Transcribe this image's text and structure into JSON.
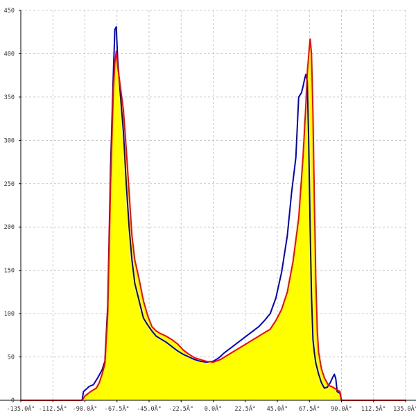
{
  "chart_data": {
    "type": "area",
    "title": "",
    "xlabel": "",
    "ylabel": "",
    "xlim": [
      -135,
      135
    ],
    "ylim": [
      0,
      450
    ],
    "grid": true,
    "x_ticks": [
      {
        "value": -135,
        "label": "-135.0Â°"
      },
      {
        "value": -112.5,
        "label": "-112.5Â°"
      },
      {
        "value": -90,
        "label": "-90.0Â°"
      },
      {
        "value": -67.5,
        "label": "-67.5Â°"
      },
      {
        "value": -45,
        "label": "-45.0Â°"
      },
      {
        "value": -22.5,
        "label": "-22.5Â°"
      },
      {
        "value": 0,
        "label": "0.0Â°"
      },
      {
        "value": 22.5,
        "label": "22.5Â°"
      },
      {
        "value": 45,
        "label": "45.0Â°"
      },
      {
        "value": 67.5,
        "label": "67.5Â°"
      },
      {
        "value": 90,
        "label": "90.0Â°"
      },
      {
        "value": 112.5,
        "label": "112.5Â°"
      },
      {
        "value": 135,
        "label": "135.0Â°"
      }
    ],
    "y_ticks": [
      {
        "value": 0,
        "label": "0"
      },
      {
        "value": 50,
        "label": "50"
      },
      {
        "value": 100,
        "label": "100"
      },
      {
        "value": 150,
        "label": "150"
      },
      {
        "value": 200,
        "label": "200"
      },
      {
        "value": 250,
        "label": "250"
      },
      {
        "value": 300,
        "label": "300"
      },
      {
        "value": 350,
        "label": "350"
      },
      {
        "value": 400,
        "label": "400"
      },
      {
        "value": 450,
        "label": "450"
      }
    ],
    "series": [
      {
        "color": "#ff0000",
        "fill": "#ffff00",
        "points": [
          [
            -135,
            0
          ],
          [
            -92,
            0
          ],
          [
            -90,
            5
          ],
          [
            -86,
            10
          ],
          [
            -82,
            14
          ],
          [
            -80,
            20
          ],
          [
            -78,
            30
          ],
          [
            -76,
            42
          ],
          [
            -74,
            100
          ],
          [
            -72,
            250
          ],
          [
            -70,
            360
          ],
          [
            -69,
            390
          ],
          [
            -68,
            403
          ],
          [
            -67,
            385
          ],
          [
            -65,
            360
          ],
          [
            -63,
            335
          ],
          [
            -61,
            290
          ],
          [
            -59,
            240
          ],
          [
            -57,
            190
          ],
          [
            -55,
            162
          ],
          [
            -52,
            140
          ],
          [
            -49,
            115
          ],
          [
            -46,
            98
          ],
          [
            -43,
            85
          ],
          [
            -40,
            80
          ],
          [
            -37,
            77
          ],
          [
            -33,
            74
          ],
          [
            -29,
            70
          ],
          [
            -25,
            65
          ],
          [
            -21,
            58
          ],
          [
            -17,
            53
          ],
          [
            -13,
            49
          ],
          [
            -9,
            47
          ],
          [
            -5,
            45
          ],
          [
            0,
            44
          ],
          [
            5,
            47
          ],
          [
            10,
            52
          ],
          [
            15,
            57
          ],
          [
            20,
            62
          ],
          [
            25,
            67
          ],
          [
            30,
            72
          ],
          [
            35,
            77
          ],
          [
            40,
            82
          ],
          [
            44,
            92
          ],
          [
            48,
            105
          ],
          [
            52,
            125
          ],
          [
            56,
            160
          ],
          [
            60,
            210
          ],
          [
            63,
            280
          ],
          [
            65,
            340
          ],
          [
            66,
            378
          ],
          [
            67,
            398
          ],
          [
            68,
            417
          ],
          [
            69,
            400
          ],
          [
            70,
            330
          ],
          [
            71,
            230
          ],
          [
            72,
            140
          ],
          [
            73,
            80
          ],
          [
            74,
            55
          ],
          [
            76,
            36
          ],
          [
            78,
            26
          ],
          [
            81,
            17
          ],
          [
            83,
            16
          ],
          [
            85,
            14
          ],
          [
            87,
            12
          ],
          [
            89,
            10
          ],
          [
            90,
            0
          ],
          [
            135,
            0
          ]
        ]
      },
      {
        "color": "#0000cc",
        "points": [
          [
            -92,
            0
          ],
          [
            -91,
            10
          ],
          [
            -89,
            13
          ],
          [
            -87,
            16
          ],
          [
            -84,
            18
          ],
          [
            -81,
            26
          ],
          [
            -78,
            35
          ],
          [
            -76,
            45
          ],
          [
            -74,
            110
          ],
          [
            -72,
            270
          ],
          [
            -70,
            380
          ],
          [
            -69,
            428
          ],
          [
            -68,
            431
          ],
          [
            -67,
            392
          ],
          [
            -65,
            350
          ],
          [
            -63,
            310
          ],
          [
            -61,
            250
          ],
          [
            -59,
            200
          ],
          [
            -57,
            162
          ],
          [
            -55,
            135
          ],
          [
            -52,
            115
          ],
          [
            -49,
            95
          ],
          [
            -46,
            87
          ],
          [
            -43,
            80
          ],
          [
            -40,
            74
          ],
          [
            -37,
            71
          ],
          [
            -33,
            67
          ],
          [
            -29,
            62
          ],
          [
            -25,
            57
          ],
          [
            -21,
            53
          ],
          [
            -17,
            50
          ],
          [
            -13,
            47
          ],
          [
            -9,
            45
          ],
          [
            -5,
            44
          ],
          [
            0,
            45
          ],
          [
            4,
            49
          ],
          [
            8,
            55
          ],
          [
            12,
            60
          ],
          [
            16,
            65
          ],
          [
            20,
            70
          ],
          [
            24,
            75
          ],
          [
            28,
            80
          ],
          [
            32,
            85
          ],
          [
            36,
            92
          ],
          [
            40,
            100
          ],
          [
            44,
            118
          ],
          [
            48,
            148
          ],
          [
            52,
            190
          ],
          [
            55,
            240
          ],
          [
            58,
            280
          ],
          [
            60,
            350
          ],
          [
            62,
            355
          ],
          [
            63,
            362
          ],
          [
            64,
            370
          ],
          [
            65,
            376
          ],
          [
            66,
            368
          ],
          [
            67,
            300
          ],
          [
            68,
            200
          ],
          [
            69,
            120
          ],
          [
            70,
            70
          ],
          [
            71,
            55
          ],
          [
            72,
            43
          ],
          [
            74,
            30
          ],
          [
            76,
            20
          ],
          [
            78,
            14
          ],
          [
            80,
            15
          ],
          [
            82,
            20
          ],
          [
            84,
            27
          ],
          [
            85,
            30
          ],
          [
            86,
            25
          ],
          [
            87,
            10
          ],
          [
            88,
            9
          ],
          [
            89,
            8
          ],
          [
            90,
            0
          ]
        ]
      }
    ]
  }
}
